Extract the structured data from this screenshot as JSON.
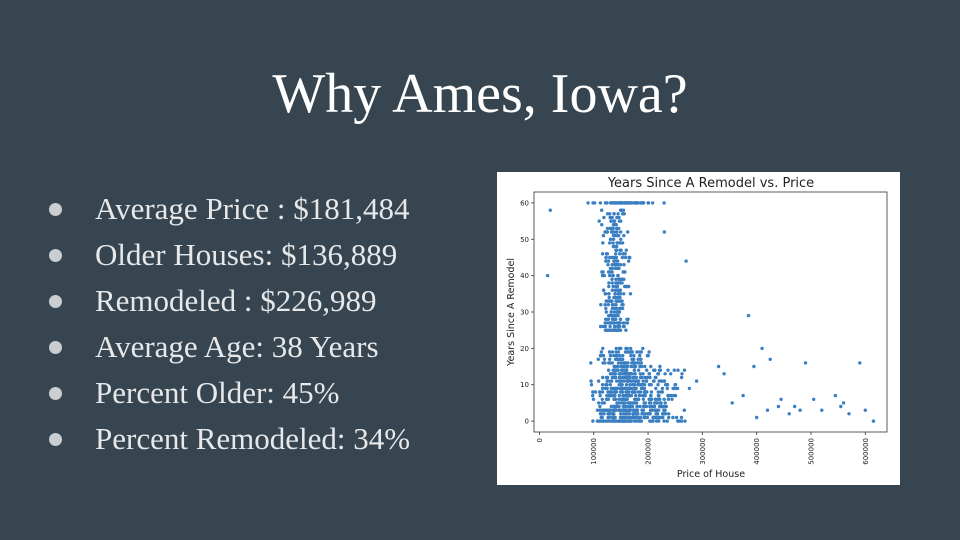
{
  "slide": {
    "title": "Why Ames, Iowa?",
    "bullets": [
      "Average Price : $181,484",
      "Older Houses: $136,889",
      "Remodeled : $226,989",
      "Average Age: 38 Years",
      "Percent Older: 45%",
      "Percent Remodeled: 34%"
    ]
  },
  "chart_data": {
    "type": "scatter",
    "title": "Years Since A Remodel vs. Price",
    "xlabel": "Price of House",
    "ylabel": "Years Since A Remodel",
    "xlim": [
      -10000,
      640000
    ],
    "ylim": [
      -3,
      63
    ],
    "x_ticks": [
      "0",
      "100000",
      "200000",
      "300000",
      "400000",
      "500000",
      "600000"
    ],
    "y_ticks": [
      "0",
      "10",
      "20",
      "30",
      "40",
      "50",
      "60"
    ],
    "grid": false,
    "point_color": "#3a7fc1",
    "series": [
      {
        "description_clusters": [
          {
            "x_center": 150000,
            "x_spread": 45000,
            "y_min": 0,
            "y_max": 20,
            "count": 420
          },
          {
            "x_center": 200000,
            "x_spread": 70000,
            "y_min": 0,
            "y_max": 15,
            "count": 260
          },
          {
            "x_center": 140000,
            "x_spread": 25000,
            "y_min": 25,
            "y_max": 58,
            "count": 300
          },
          {
            "x_center": 160000,
            "x_spread": 60000,
            "y_min": 60,
            "y_max": 60,
            "count": 70
          }
        ],
        "outliers": [
          [
            15000,
            40
          ],
          [
            20000,
            58
          ],
          [
            110000,
            55
          ],
          [
            230000,
            52
          ],
          [
            270000,
            44
          ],
          [
            330000,
            15
          ],
          [
            340000,
            13
          ],
          [
            385000,
            29
          ],
          [
            395000,
            15
          ],
          [
            410000,
            20
          ],
          [
            425000,
            17
          ],
          [
            445000,
            6
          ],
          [
            470000,
            4
          ],
          [
            480000,
            3
          ],
          [
            490000,
            16
          ],
          [
            520000,
            3
          ],
          [
            545000,
            7
          ],
          [
            555000,
            4
          ],
          [
            560000,
            5
          ],
          [
            570000,
            2
          ],
          [
            590000,
            16
          ],
          [
            600000,
            3
          ],
          [
            615000,
            0
          ],
          [
            505000,
            6
          ],
          [
            460000,
            2
          ],
          [
            440000,
            4
          ],
          [
            420000,
            3
          ],
          [
            400000,
            1
          ],
          [
            375000,
            7
          ],
          [
            355000,
            5
          ]
        ]
      }
    ]
  }
}
